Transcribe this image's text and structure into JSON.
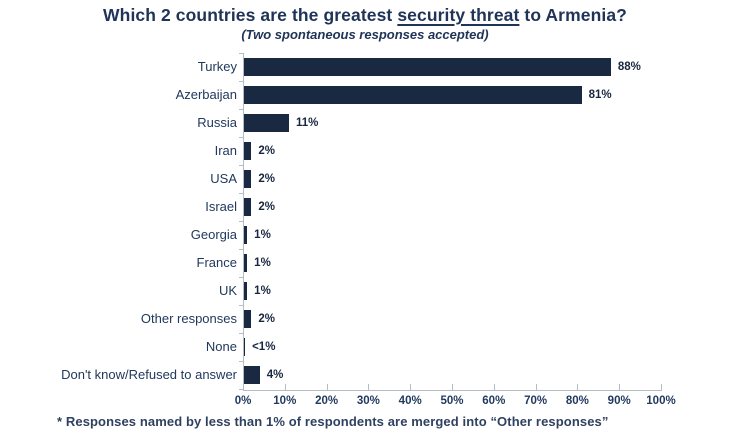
{
  "header": {
    "title_prefix": "Which 2 countries are the greatest ",
    "title_underline": "security threat",
    "title_suffix": " to Armenia?",
    "subtitle": "(Two spontaneous responses accepted)"
  },
  "chart_data": {
    "type": "bar",
    "orientation": "horizontal",
    "title": "Which 2 countries are the greatest security threat to Armenia?",
    "subtitle": "(Two spontaneous responses accepted)",
    "categories": [
      "Turkey",
      "Azerbaijan",
      "Russia",
      "Iran",
      "USA",
      "Israel",
      "Georgia",
      "France",
      "UK",
      "Other responses",
      "None",
      "Don't know/Refused to answer"
    ],
    "values": [
      88,
      81,
      11,
      2,
      2,
      2,
      1,
      1,
      1,
      2,
      0.5,
      4
    ],
    "value_labels": [
      "88%",
      "81%",
      "11%",
      "2%",
      "2%",
      "2%",
      "1%",
      "1%",
      "1%",
      "2%",
      "<1%",
      "4%"
    ],
    "xlim": [
      0,
      100
    ],
    "x_ticks": [
      "0%",
      "10%",
      "20%",
      "30%",
      "40%",
      "50%",
      "60%",
      "70%",
      "80%",
      "90%",
      "100%"
    ],
    "grid": false,
    "legend": null,
    "bar_color": "#1a2942",
    "axis_color": "#b4bcc4",
    "text_color": "#203457"
  },
  "footnote": "* Responses named by less than 1% of respondents are merged into “Other responses”"
}
